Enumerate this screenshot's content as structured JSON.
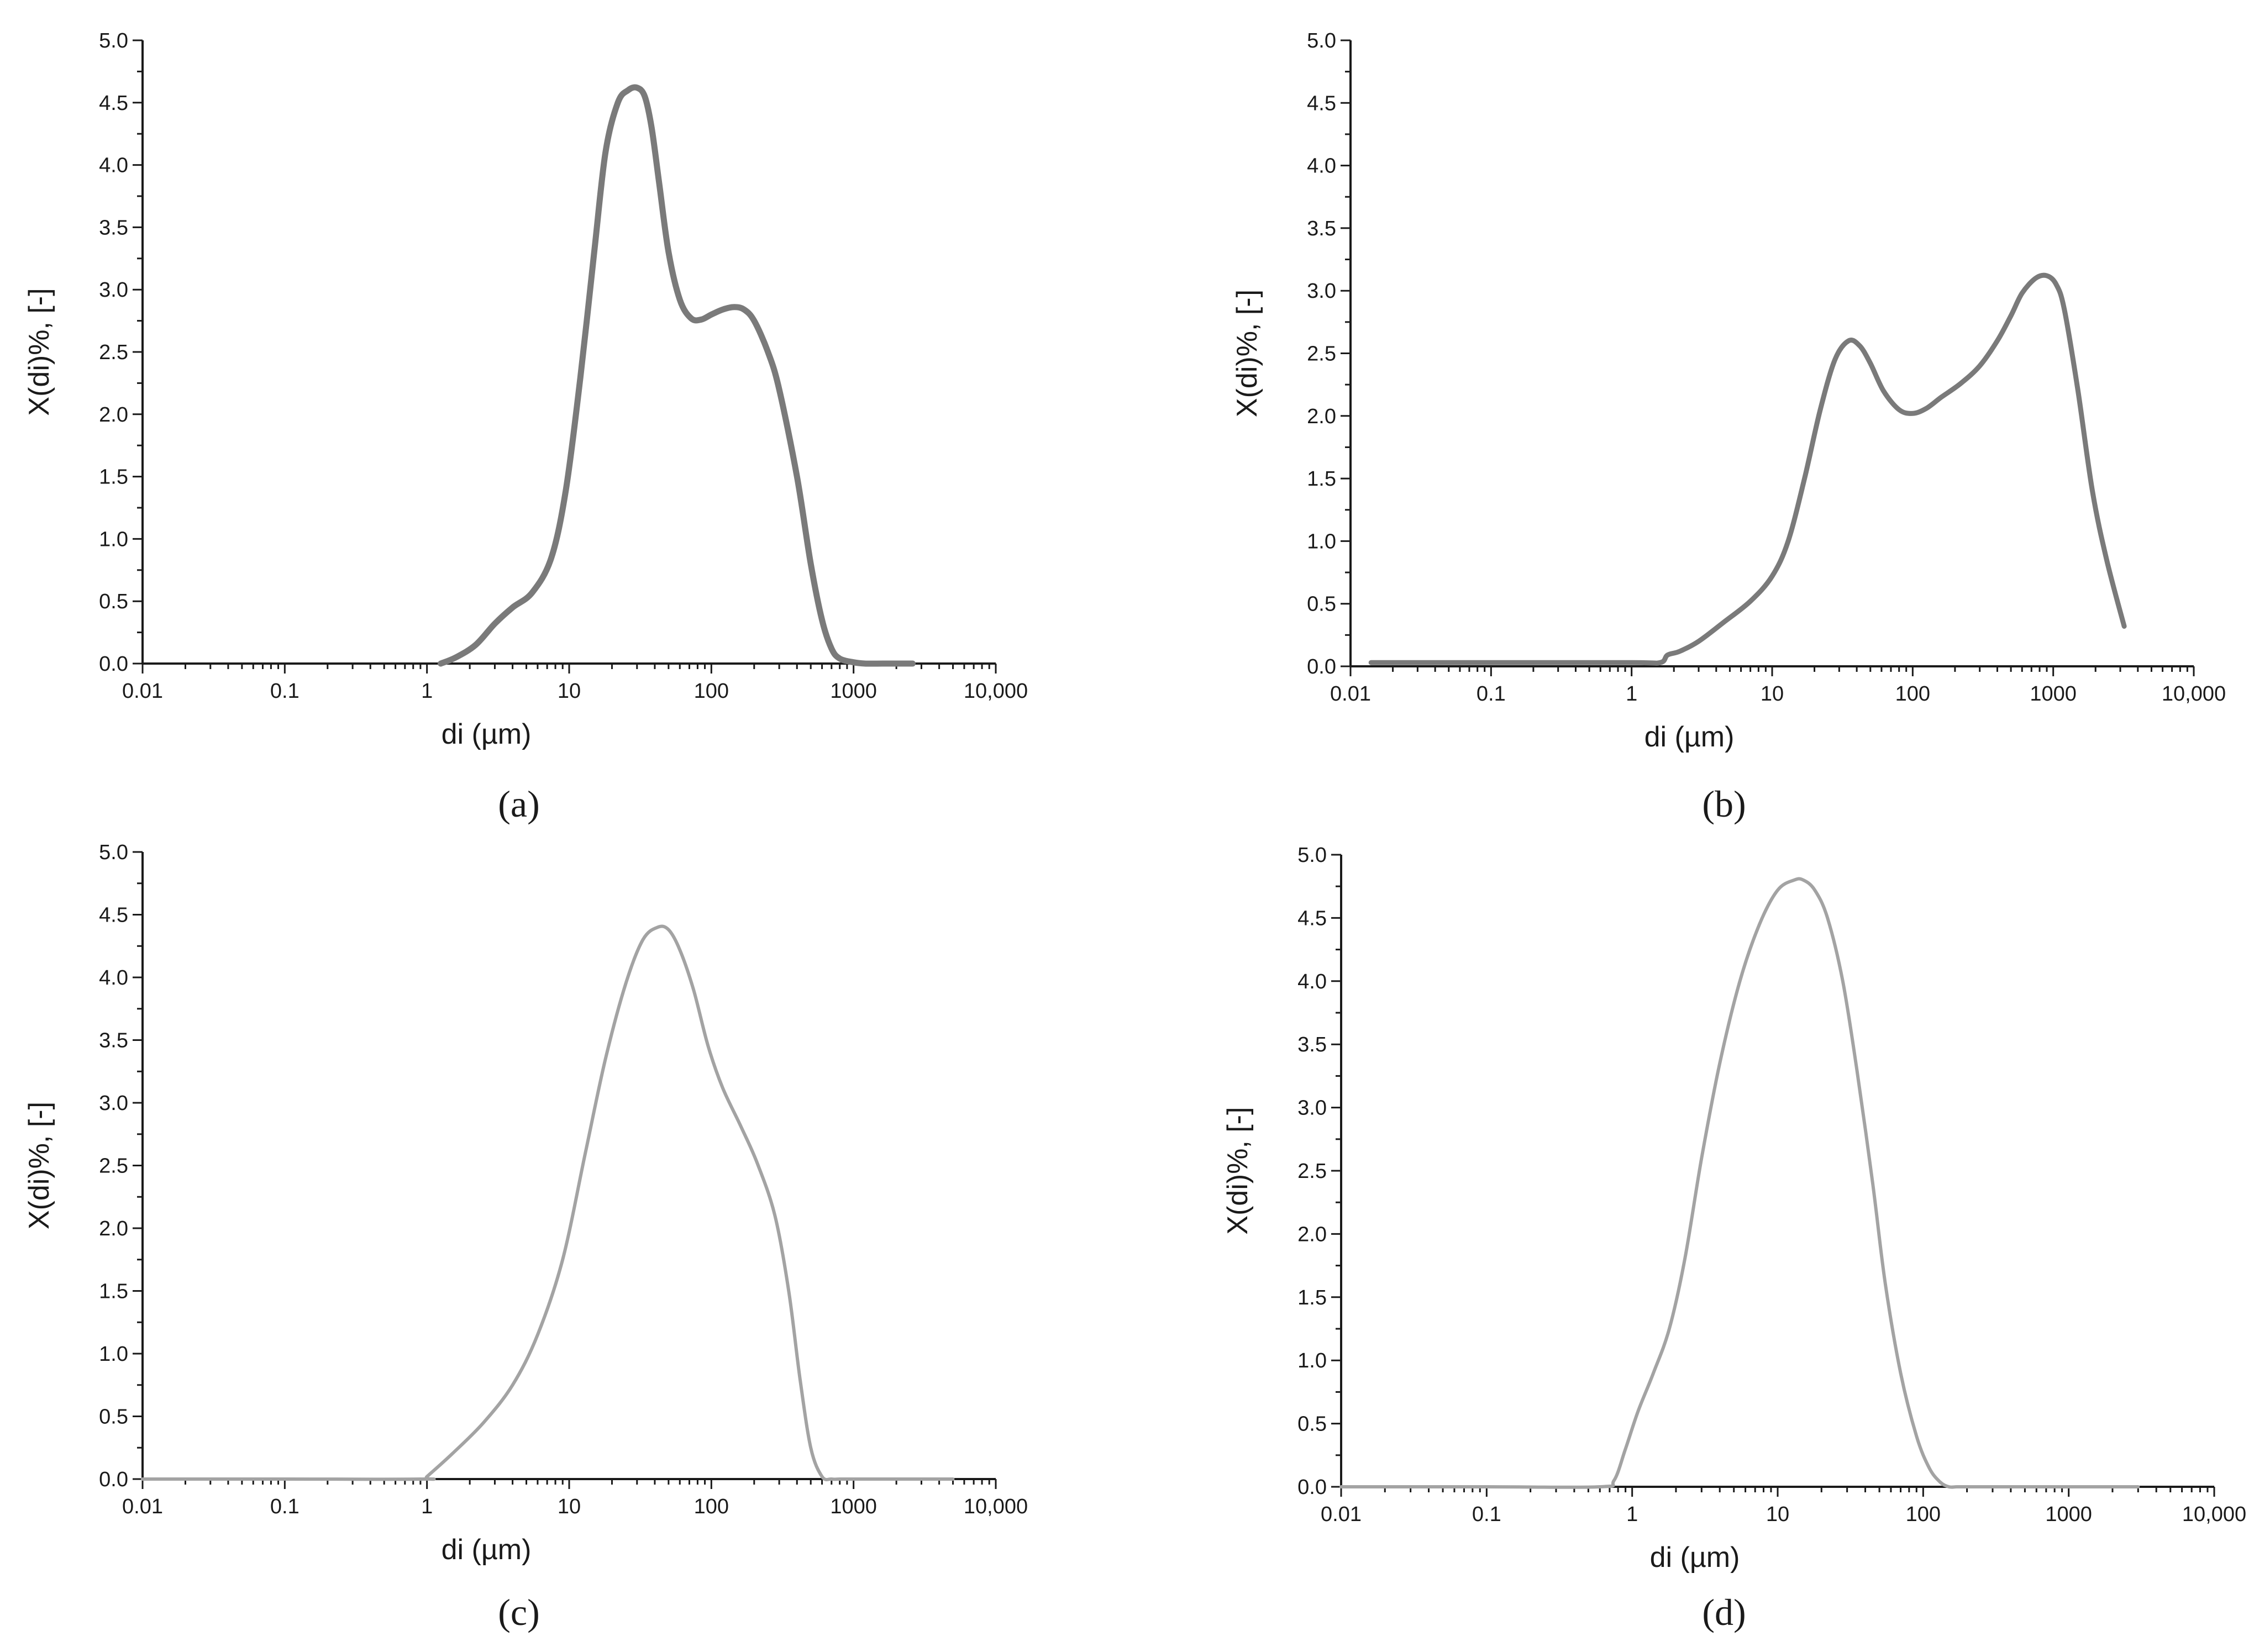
{
  "figure": {
    "panels": [
      {
        "id": "a",
        "caption": {
          "open": "(",
          "letter": "a",
          "close": ")"
        },
        "chart_data": {
          "type": "line",
          "xlabel": "di (µm)",
          "ylabel": "X(di)%, [-]",
          "x_scale": "log",
          "xlim": [
            0.01,
            10000
          ],
          "ylim": [
            0,
            5
          ],
          "x_ticks": [
            0.01,
            0.1,
            1,
            10,
            100,
            1000,
            10000
          ],
          "x_tick_labels": [
            "0.01",
            "0.1",
            "1",
            "10",
            "100",
            "1000",
            "10,000"
          ],
          "y_ticks": [
            0,
            0.5,
            1,
            1.5,
            2,
            2.5,
            3,
            3.5,
            4,
            4.5,
            5
          ],
          "y_tick_labels": [
            "0.0",
            "0.5",
            "1.0",
            "1.5",
            "2.0",
            "2.5",
            "3.0",
            "3.5",
            "4.0",
            "4.5",
            "5.0"
          ],
          "grid": false,
          "series": [
            {
              "color": "#7a7a7a",
              "x": [
                1.25,
                1.6,
                2.2,
                3.0,
                4.0,
                5.5,
                7.5,
                9.5,
                12,
                15,
                18,
                22,
                26,
                30,
                34,
                38,
                43,
                50,
                60,
                72,
                85,
                100,
                120,
                145,
                170,
                200,
                250,
                300,
                400,
                500,
                600,
                700,
                800,
                1000,
                1200,
                1600,
                2000,
                2600
              ],
              "y": [
                0.0,
                0.05,
                0.15,
                0.32,
                0.45,
                0.57,
                0.85,
                1.4,
                2.3,
                3.3,
                4.1,
                4.5,
                4.6,
                4.62,
                4.55,
                4.3,
                3.85,
                3.3,
                2.92,
                2.77,
                2.76,
                2.8,
                2.84,
                2.86,
                2.84,
                2.75,
                2.5,
                2.2,
                1.5,
                0.8,
                0.35,
                0.12,
                0.04,
                0.01,
                0.0,
                0.0,
                0.0,
                0.0
              ]
            }
          ]
        }
      },
      {
        "id": "b",
        "caption": {
          "open": "(",
          "letter": "b",
          "close": ")"
        },
        "chart_data": {
          "type": "line",
          "xlabel": "di (µm)",
          "ylabel": "X(di)%, [-]",
          "x_scale": "log",
          "xlim": [
            0.01,
            10000
          ],
          "ylim": [
            0,
            5
          ],
          "x_ticks": [
            0.01,
            0.1,
            1,
            10,
            100,
            1000,
            10000
          ],
          "x_tick_labels": [
            "0.01",
            "0.1",
            "1",
            "10",
            "100",
            "1000",
            "10,000"
          ],
          "y_ticks": [
            0,
            0.5,
            1,
            1.5,
            2,
            2.5,
            3,
            3.5,
            4,
            4.5,
            5
          ],
          "y_tick_labels": [
            "0.0",
            "0.5",
            "1.0",
            "1.5",
            "2.0",
            "2.5",
            "3.0",
            "3.5",
            "4.0",
            "4.5",
            "5.0"
          ],
          "grid": false,
          "series": [
            {
              "color": "#7a7a7a",
              "x": [
                0.014,
                0.1,
                1,
                1.6,
                1.8,
                2.2,
                3.0,
                4.5,
                7,
                10,
                13,
                17,
                22,
                28,
                35,
                42,
                50,
                62,
                80,
                100,
                125,
                160,
                220,
                300,
                400,
                500,
                600,
                750,
                900,
                1050,
                1200,
                1500,
                1900,
                2400,
                3200
              ],
              "y": [
                0.03,
                0.03,
                0.03,
                0.03,
                0.09,
                0.12,
                0.2,
                0.35,
                0.52,
                0.72,
                1.0,
                1.5,
                2.05,
                2.45,
                2.6,
                2.56,
                2.42,
                2.2,
                2.05,
                2.02,
                2.06,
                2.15,
                2.26,
                2.4,
                2.6,
                2.8,
                2.98,
                3.1,
                3.12,
                3.05,
                2.85,
                2.2,
                1.4,
                0.85,
                0.32
              ]
            }
          ]
        }
      },
      {
        "id": "c",
        "caption": {
          "open": "(",
          "letter": "c",
          "close": ")"
        },
        "chart_data": {
          "type": "line",
          "xlabel": "di (µm)",
          "ylabel": "X(di)%, [-]",
          "x_scale": "log",
          "xlim": [
            0.01,
            10000
          ],
          "ylim": [
            0,
            5
          ],
          "x_ticks": [
            0.01,
            0.1,
            1,
            10,
            100,
            1000,
            10000
          ],
          "x_tick_labels": [
            "0.01",
            "0.1",
            "1",
            "10",
            "100",
            "1000",
            "10,000"
          ],
          "y_ticks": [
            0,
            0.5,
            1,
            1.5,
            2,
            2.5,
            3,
            3.5,
            4,
            4.5,
            5
          ],
          "y_tick_labels": [
            "0.0",
            "0.5",
            "1.0",
            "1.5",
            "2.0",
            "2.5",
            "3.0",
            "3.5",
            "4.0",
            "4.5",
            "5.0"
          ],
          "grid": false,
          "series": [
            {
              "color": "#a3a3a3",
              "x": [
                0.01,
                0.1,
                0.95,
                1.0,
                1.5,
                2.5,
                4,
                6,
                9,
                13,
                18,
                25,
                33,
                42,
                50,
                60,
                75,
                95,
                120,
                160,
                210,
                280,
                350,
                420,
                500,
                600,
                700,
                800,
                1000,
                2000,
                5000
              ],
              "y": [
                0.0,
                0.0,
                0.0,
                0.02,
                0.2,
                0.45,
                0.75,
                1.15,
                1.75,
                2.6,
                3.35,
                3.95,
                4.3,
                4.4,
                4.38,
                4.22,
                3.9,
                3.45,
                3.12,
                2.82,
                2.52,
                2.1,
                1.5,
                0.8,
                0.25,
                0.02,
                0.0,
                0.0,
                0.0,
                0.0,
                0.0
              ]
            }
          ]
        }
      },
      {
        "id": "d",
        "caption": {
          "open": "(",
          "letter": "d",
          "close": ")"
        },
        "chart_data": {
          "type": "line",
          "xlabel": "di (µm)",
          "ylabel": "X(di)%, [-]",
          "x_scale": "log",
          "xlim": [
            0.01,
            10000
          ],
          "ylim": [
            0,
            5
          ],
          "x_ticks": [
            0.01,
            0.1,
            1,
            10,
            100,
            1000,
            10000
          ],
          "x_tick_labels": [
            "0.01",
            "0.1",
            "1",
            "10",
            "100",
            "1000",
            "10,000"
          ],
          "y_ticks": [
            0,
            0.5,
            1,
            1.5,
            2,
            2.5,
            3,
            3.5,
            4,
            4.5,
            5
          ],
          "y_tick_labels": [
            "0.0",
            "0.5",
            "1.0",
            "1.5",
            "2.0",
            "2.5",
            "3.0",
            "3.5",
            "4.0",
            "4.5",
            "5.0"
          ],
          "grid": false,
          "series": [
            {
              "color": "#a3a3a3",
              "x": [
                0.01,
                0.1,
                0.6,
                0.75,
                0.9,
                1.1,
                1.4,
                1.8,
                2.3,
                3.0,
                4.0,
                5.5,
                7.5,
                10,
                13,
                15,
                18,
                22,
                28,
                35,
                45,
                55,
                70,
                90,
                110,
                130,
                150,
                170,
                200,
                500,
                1000,
                3000
              ],
              "y": [
                0.0,
                0.0,
                0.0,
                0.05,
                0.3,
                0.6,
                0.9,
                1.25,
                1.8,
                2.6,
                3.35,
                4.0,
                4.45,
                4.72,
                4.8,
                4.8,
                4.72,
                4.5,
                4.0,
                3.3,
                2.4,
                1.6,
                0.9,
                0.4,
                0.15,
                0.04,
                0.0,
                0.0,
                0.0,
                0.0,
                0.0,
                0.0
              ]
            }
          ]
        }
      }
    ]
  }
}
